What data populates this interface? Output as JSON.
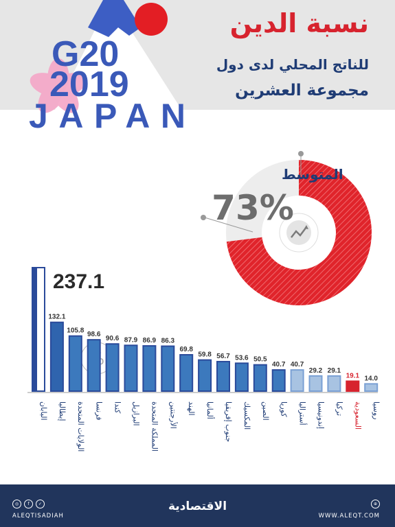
{
  "header": {
    "title": "نسبة الدين",
    "subtitle_line1": "للناتج المحلي لدى دول",
    "subtitle_line2": "مجموعة العشرين",
    "logo_g20": "G20",
    "logo_year": "2019",
    "logo_country": "JAPAN"
  },
  "average": {
    "label": "المتوسط",
    "value_text": "73%",
    "value": 73,
    "icon": "chart-trend-icon"
  },
  "chart_data": {
    "type": "bar",
    "unit_icon_text": "%",
    "categories": [
      "اليابان",
      "إيطاليا",
      "الولايات المتحدة",
      "فرنسا",
      "كندا",
      "البرازيل",
      "المملكة المتحدة",
      "الأرجنتين",
      "الهند",
      "ألمانيا",
      "جنوب إفريقيا",
      "المكسيك",
      "الصين",
      "كوريا",
      "أستراليا",
      "إندونيسيا",
      "تركيا",
      "السعودية",
      "روسيا"
    ],
    "values": [
      237.1,
      132.1,
      105.8,
      98.6,
      90.6,
      87.9,
      86.9,
      86.3,
      69.8,
      59.8,
      56.7,
      53.6,
      50.5,
      40.7,
      40.7,
      29.2,
      29.1,
      19.1,
      14.0
    ],
    "value_labels": [
      "237.1",
      "132.1",
      "105.8",
      "98.6",
      "90.6",
      "87.9",
      "86.9",
      "86.3",
      "69.8",
      "59.8",
      "56.7",
      "53.6",
      "50.5",
      "40.7",
      "40.7",
      "29.2",
      "29.1",
      "19.1",
      "14.0"
    ],
    "highlight_index": 17,
    "colors": {
      "highlight": "#d7232e",
      "dark": "#2a4a9a",
      "mid": "#3c79bd",
      "light": "#a8c3e2",
      "text": "#1f3c75"
    }
  },
  "footer": {
    "brand": "الاقتصادية",
    "handle": "ALEQTISADIAH",
    "website": "WWW.ALEQT.COM",
    "social_icons": [
      "instagram-icon",
      "facebook-icon",
      "twitter-icon"
    ],
    "web_icon": "globe-icon"
  }
}
